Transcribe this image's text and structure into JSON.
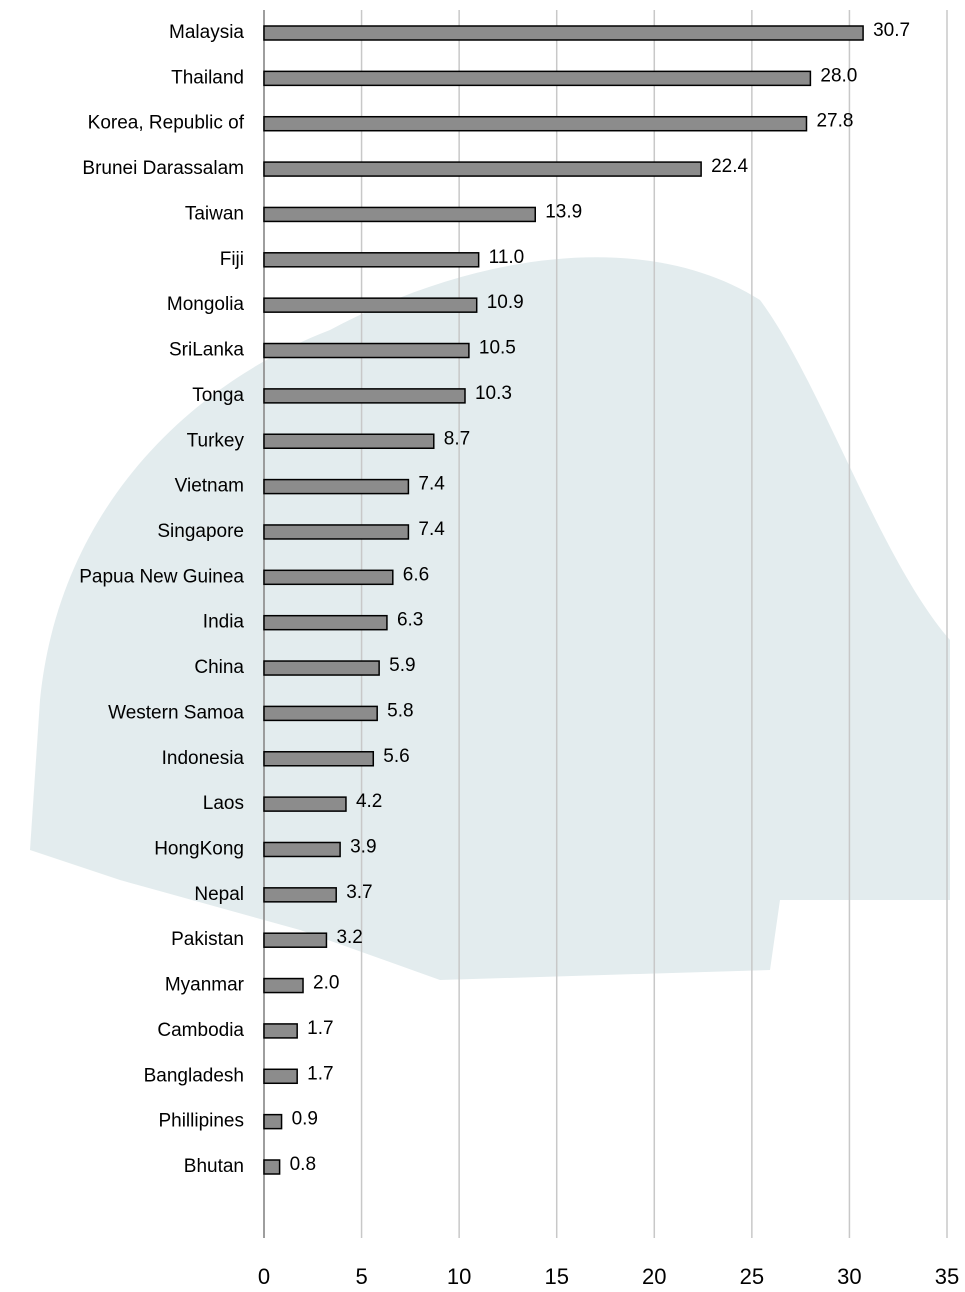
{
  "chart_data": {
    "type": "barh",
    "categories": [
      "Malaysia",
      "Thailand",
      "Korea, Republic of",
      "Brunei Darassalam",
      "Taiwan",
      "Fiji",
      "Mongolia",
      "SriLanka",
      "Tonga",
      "Turkey",
      "Vietnam",
      "Singapore",
      "Papua New Guinea",
      "India",
      "China",
      "Western Samoa",
      "Indonesia",
      "Laos",
      "HongKong",
      "Nepal",
      "Pakistan",
      "Myanmar",
      "Cambodia",
      "Bangladesh",
      "Phillipines",
      "Bhutan"
    ],
    "values": [
      30.7,
      28.0,
      27.8,
      22.4,
      13.9,
      11.0,
      10.9,
      10.5,
      10.3,
      8.7,
      7.4,
      7.4,
      6.6,
      6.3,
      5.9,
      5.8,
      5.6,
      4.2,
      3.9,
      3.7,
      3.2,
      2.0,
      1.7,
      1.7,
      0.9,
      0.8
    ],
    "value_labels": [
      "30.7",
      "28.0",
      "27.8",
      "22.4",
      "13.9",
      "11.0",
      "10.9",
      "10.5",
      "10.3",
      "8.7",
      "7.4",
      "7.4",
      "6.6",
      "6.3",
      "5.9",
      "5.8",
      "5.6",
      "4.2",
      "3.9",
      "3.7",
      "3.2",
      "2.0",
      "1.7",
      "1.7",
      "0.9",
      "0.8"
    ],
    "color": "#8c8c8c",
    "xlim": [
      0,
      35
    ],
    "xticks": [
      0,
      5,
      10,
      15,
      20,
      25,
      30,
      35
    ],
    "grid": true
  }
}
